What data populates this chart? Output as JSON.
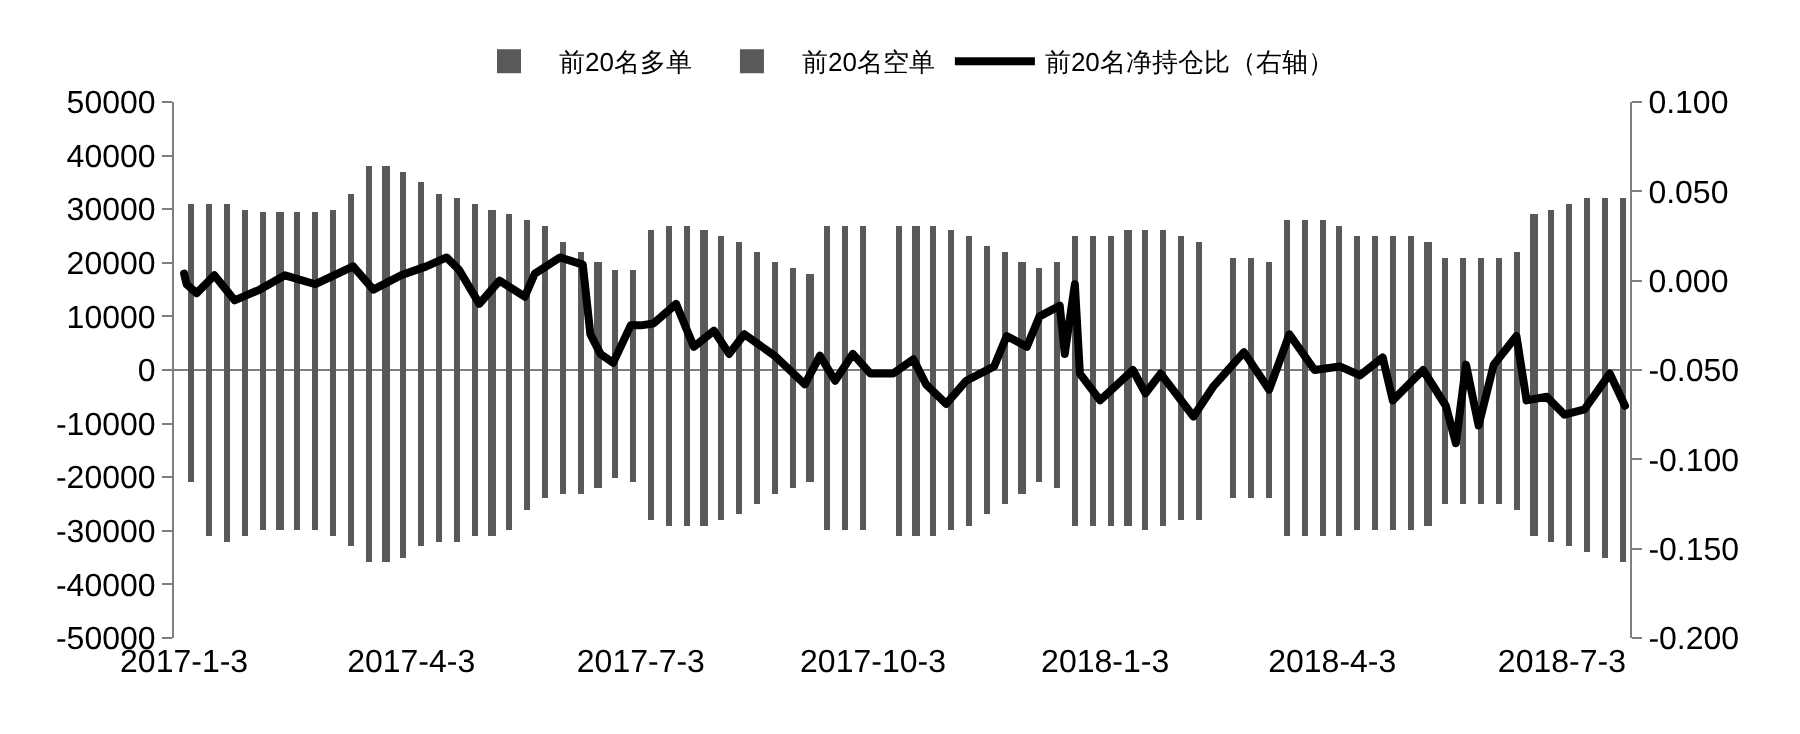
{
  "chart_data": {
    "type": "bar",
    "x": [
      "2017-01-06",
      "2017-01-13",
      "2017-01-20",
      "2017-01-27",
      "2017-02-03",
      "2017-02-10",
      "2017-02-17",
      "2017-02-24",
      "2017-03-03",
      "2017-03-10",
      "2017-03-17",
      "2017-03-24",
      "2017-03-31",
      "2017-04-07",
      "2017-04-14",
      "2017-04-21",
      "2017-04-28",
      "2017-05-05",
      "2017-05-12",
      "2017-05-19",
      "2017-05-26",
      "2017-06-02",
      "2017-06-09",
      "2017-06-16",
      "2017-06-23",
      "2017-06-30",
      "2017-07-07",
      "2017-07-14",
      "2017-07-21",
      "2017-07-28",
      "2017-08-04",
      "2017-08-11",
      "2017-08-18",
      "2017-08-25",
      "2017-09-01",
      "2017-09-08",
      "2017-09-15",
      "2017-09-22",
      "2017-09-29",
      "2017-10-06",
      "2017-10-13",
      "2017-10-20",
      "2017-10-27",
      "2017-11-03",
      "2017-11-10",
      "2017-11-17",
      "2017-11-24",
      "2017-12-01",
      "2017-12-08",
      "2017-12-15",
      "2017-12-22",
      "2017-12-29",
      "2018-01-05",
      "2018-01-12",
      "2018-01-19",
      "2018-01-26",
      "2018-02-02",
      "2018-02-09",
      "2018-02-16",
      "2018-02-23",
      "2018-03-02",
      "2018-03-09",
      "2018-03-16",
      "2018-03-23",
      "2018-03-30",
      "2018-04-06",
      "2018-04-13",
      "2018-04-20",
      "2018-04-27",
      "2018-05-04",
      "2018-05-11",
      "2018-05-18",
      "2018-05-25",
      "2018-06-01",
      "2018-06-08",
      "2018-06-15",
      "2018-06-22",
      "2018-06-29",
      "2018-07-06",
      "2018-07-13",
      "2018-07-20",
      "2018-07-27"
    ],
    "series": [
      {
        "name": "前20名多单",
        "color": "#595959",
        "values": [
          31000,
          31000,
          31000,
          30000,
          29500,
          29500,
          29500,
          29500,
          30000,
          33000,
          38000,
          38000,
          37000,
          35000,
          33000,
          32000,
          31000,
          30000,
          29000,
          28000,
          27000,
          24000,
          22000,
          20000,
          18500,
          18500,
          26000,
          27000,
          27000,
          26000,
          25000,
          24000,
          22000,
          20000,
          19000,
          18000,
          27000,
          27000,
          27000,
          null,
          27000,
          27000,
          27000,
          26000,
          25000,
          23000,
          22000,
          20000,
          19000,
          20000,
          25000,
          25000,
          25000,
          26000,
          26000,
          26000,
          25000,
          24000,
          null,
          21000,
          21000,
          20000,
          28000,
          28000,
          28000,
          27000,
          25000,
          25000,
          25000,
          25000,
          24000,
          21000,
          21000,
          21000,
          21000,
          22000,
          29000,
          30000,
          31000,
          32000,
          32000,
          32000
        ]
      },
      {
        "name": "前20名空单",
        "color": "#595959",
        "values": [
          -21000,
          -31000,
          -32000,
          -31000,
          -30000,
          -30000,
          -30000,
          -30000,
          -31000,
          -33000,
          -36000,
          -36000,
          -35000,
          -33000,
          -32000,
          -32000,
          -31000,
          -31000,
          -30000,
          -26000,
          -24000,
          -23000,
          -23000,
          -22000,
          -20000,
          -21000,
          -28000,
          -29000,
          -29000,
          -29000,
          -28000,
          -27000,
          -25000,
          -23000,
          -22000,
          -21000,
          -30000,
          -30000,
          -30000,
          null,
          -31000,
          -31000,
          -31000,
          -30000,
          -29000,
          -27000,
          -25000,
          -23000,
          -21000,
          -22000,
          -29000,
          -29000,
          -29000,
          -29000,
          -30000,
          -29000,
          -28000,
          -28000,
          null,
          -24000,
          -24000,
          -24000,
          -31000,
          -31000,
          -31000,
          -31000,
          -30000,
          -30000,
          -30000,
          -30000,
          -29000,
          -25000,
          -25000,
          -25000,
          -25000,
          -26000,
          -31000,
          -32000,
          -33000,
          -34000,
          -35000,
          -36000
        ]
      },
      {
        "name": "前20名净持仓比（右轴）",
        "type": "line",
        "axis": "y2",
        "color": "#000000",
        "x": [
          "2017-01-03",
          "2017-01-04",
          "2017-01-08",
          "2017-01-15",
          "2017-01-23",
          "2017-02-02",
          "2017-02-12",
          "2017-02-24",
          "2017-03-11",
          "2017-03-19",
          "2017-03-30",
          "2017-04-09",
          "2017-04-17",
          "2017-04-22",
          "2017-04-30",
          "2017-05-08",
          "2017-05-18",
          "2017-05-22",
          "2017-06-01",
          "2017-06-10",
          "2017-06-13",
          "2017-06-17",
          "2017-06-22",
          "2017-06-29",
          "2017-07-03",
          "2017-07-08",
          "2017-07-17",
          "2017-07-24",
          "2017-08-01",
          "2017-08-07",
          "2017-08-13",
          "2017-08-25",
          "2017-09-06",
          "2017-09-12",
          "2017-09-18",
          "2017-09-25",
          "2017-10-02",
          "2017-10-11",
          "2017-10-19",
          "2017-10-24",
          "2017-11-01",
          "2017-11-09",
          "2017-11-20",
          "2017-11-25",
          "2017-12-03",
          "2017-12-08",
          "2017-12-16",
          "2017-12-18",
          "2017-12-22",
          "2017-12-24",
          "2018-01-01",
          "2018-01-14",
          "2018-01-19",
          "2018-01-25",
          "2018-02-07",
          "2018-02-15",
          "2018-02-27",
          "2018-03-09",
          "2018-03-17",
          "2018-03-27",
          "2018-04-06",
          "2018-04-14",
          "2018-04-23",
          "2018-04-27",
          "2018-05-09",
          "2018-05-18",
          "2018-05-22",
          "2018-05-26",
          "2018-05-31",
          "2018-06-06",
          "2018-06-15",
          "2018-06-19",
          "2018-06-27",
          "2018-07-04",
          "2018-07-12",
          "2018-07-22",
          "2018-07-28"
        ],
        "values": [
          0.004,
          -0.002,
          -0.007,
          0.003,
          -0.011,
          -0.005,
          0.003,
          -0.002,
          0.008,
          -0.005,
          0.003,
          0.008,
          0.013,
          0.006,
          -0.013,
          0.0,
          -0.009,
          0.004,
          0.013,
          0.009,
          -0.03,
          -0.041,
          -0.046,
          -0.025,
          -0.025,
          -0.024,
          -0.013,
          -0.037,
          -0.028,
          -0.041,
          -0.03,
          -0.042,
          -0.058,
          -0.042,
          -0.056,
          -0.041,
          -0.052,
          -0.052,
          -0.044,
          -0.058,
          -0.069,
          -0.056,
          -0.048,
          -0.031,
          -0.037,
          -0.02,
          -0.014,
          -0.041,
          -0.002,
          -0.052,
          -0.067,
          -0.05,
          -0.063,
          -0.052,
          -0.076,
          -0.059,
          -0.04,
          -0.061,
          -0.03,
          -0.05,
          -0.048,
          -0.053,
          -0.043,
          -0.067,
          -0.05,
          -0.07,
          -0.091,
          -0.047,
          -0.081,
          -0.047,
          -0.031,
          -0.067,
          -0.065,
          -0.075,
          -0.072,
          -0.052,
          -0.07
        ]
      }
    ],
    "xlim": [
      "2016-12-30",
      "2018-07-30"
    ],
    "xticks": [
      {
        "value": "2017-01-03",
        "label": "2017-1-3"
      },
      {
        "value": "2017-04-03",
        "label": "2017-4-3"
      },
      {
        "value": "2017-07-03",
        "label": "2017-7-3"
      },
      {
        "value": "2017-10-03",
        "label": "2017-10-3"
      },
      {
        "value": "2018-01-03",
        "label": "2018-1-3"
      },
      {
        "value": "2018-04-03",
        "label": "2018-4-3"
      },
      {
        "value": "2018-07-03",
        "label": "2018-7-3"
      }
    ],
    "ylim": [
      -50000,
      50000
    ],
    "yticks": [
      -50000,
      -40000,
      -30000,
      -20000,
      -10000,
      0,
      10000,
      20000,
      30000,
      40000,
      50000
    ],
    "y2lim": [
      -0.2,
      0.1
    ],
    "y2ticks": [
      {
        "value": -0.2,
        "label": "-0.200"
      },
      {
        "value": -0.15,
        "label": "-0.150"
      },
      {
        "value": -0.1,
        "label": "-0.100"
      },
      {
        "value": -0.05,
        "label": "-0.050"
      },
      {
        "value": 0,
        "label": "0.000"
      },
      {
        "value": 0.05,
        "label": "0.050"
      },
      {
        "value": 0.1,
        "label": "0.100"
      }
    ],
    "legend": "top",
    "stacked": true,
    "ref_lines": [
      {
        "axis": "y",
        "value": 0,
        "color": "#7f7f7f"
      }
    ],
    "grid": false
  }
}
